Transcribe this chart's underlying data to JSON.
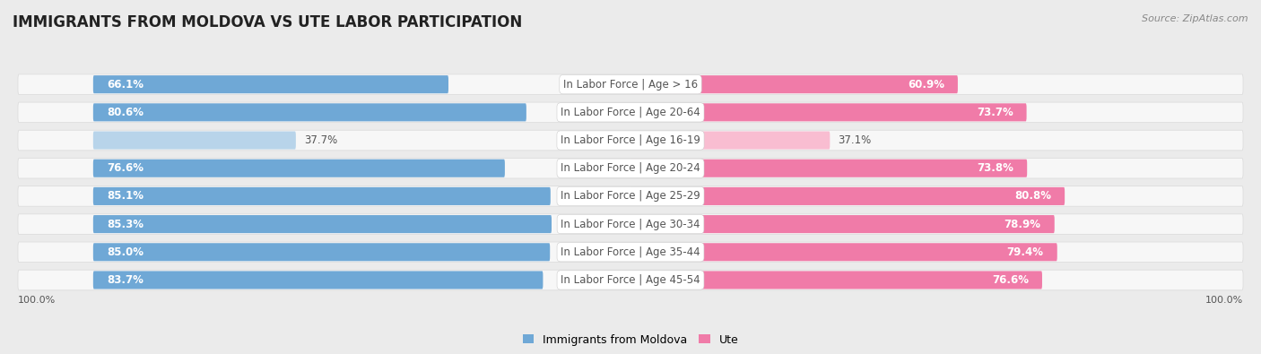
{
  "title": "IMMIGRANTS FROM MOLDOVA VS UTE LABOR PARTICIPATION",
  "source": "Source: ZipAtlas.com",
  "categories": [
    "In Labor Force | Age > 16",
    "In Labor Force | Age 20-64",
    "In Labor Force | Age 16-19",
    "In Labor Force | Age 20-24",
    "In Labor Force | Age 25-29",
    "In Labor Force | Age 30-34",
    "In Labor Force | Age 35-44",
    "In Labor Force | Age 45-54"
  ],
  "moldova_values": [
    66.1,
    80.6,
    37.7,
    76.6,
    85.1,
    85.3,
    85.0,
    83.7
  ],
  "ute_values": [
    60.9,
    73.7,
    37.1,
    73.8,
    80.8,
    78.9,
    79.4,
    76.6
  ],
  "moldova_color_full": "#6FA8D6",
  "moldova_color_light": "#B8D4EA",
  "ute_color_full": "#F07BA8",
  "ute_color_light": "#F9BDD1",
  "bg_color": "#EBEBEB",
  "row_bg_color": "#F7F7F7",
  "row_border_color": "#DDDDDD",
  "label_color": "#555555",
  "title_color": "#222222",
  "source_color": "#888888",
  "label_fontsize": 8.5,
  "title_fontsize": 12,
  "bar_height": 0.62,
  "legend_labels": [
    "Immigrants from Moldova",
    "Ute"
  ],
  "x_axis_labels": [
    "100.0%",
    "100.0%"
  ]
}
